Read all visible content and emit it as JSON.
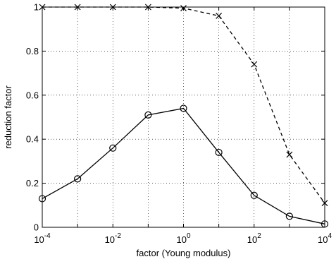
{
  "chart_data": {
    "type": "line",
    "xlabel": "factor (Young modulus)",
    "ylabel": "reduction factor",
    "xscale": "log",
    "xlim": [
      0.0001,
      10000
    ],
    "ylim": [
      0,
      1
    ],
    "grid": true,
    "x": [
      0.0001,
      0.001,
      0.01,
      0.1,
      1,
      10,
      100,
      1000,
      10000
    ],
    "x_tick_exponents": [
      "-4",
      "-2",
      "0",
      "2",
      "4"
    ],
    "x_tick_base": "10",
    "y_ticks": [
      "0",
      "0.2",
      "0.4",
      "0.6",
      "0.8",
      "1"
    ],
    "series": [
      {
        "values": [
          0.13,
          0.22,
          0.36,
          0.51,
          0.54,
          0.34,
          0.145,
          0.05,
          0.015
        ],
        "marker": "circle",
        "line": "solid",
        "color": "#000000"
      },
      {
        "values": [
          1.0,
          1.0,
          1.0,
          1.0,
          0.995,
          0.96,
          0.74,
          0.33,
          0.11
        ],
        "marker": "x",
        "line": "dashed",
        "color": "#000000"
      }
    ]
  }
}
